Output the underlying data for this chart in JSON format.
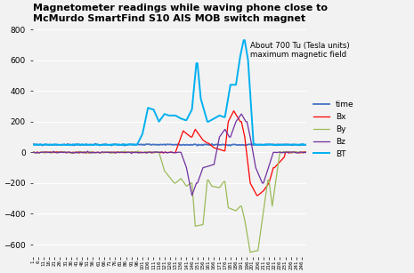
{
  "title_line1": "Magnetometer readings while waving phone close to",
  "title_line2": "McMurdo SmartFind S10 AIS MOB switch magnet",
  "annotation": "About 700 Tu (Tesla units)\nmaximum magnetic field",
  "legend_labels": [
    "time",
    "Bx",
    "By",
    "Bz",
    "BT"
  ],
  "legend_colors": [
    "#4472C4",
    "#FF0000",
    "#9BBB59",
    "#7030A0",
    "#00B0F0"
  ],
  "line_widths": [
    1.3,
    0.9,
    0.9,
    0.9,
    1.4
  ],
  "ylim": [
    -680,
    830
  ],
  "yticks": [
    -600,
    -400,
    -200,
    0,
    200,
    400,
    600,
    800
  ],
  "background_color": "#F2F2F2",
  "n_points": 250
}
